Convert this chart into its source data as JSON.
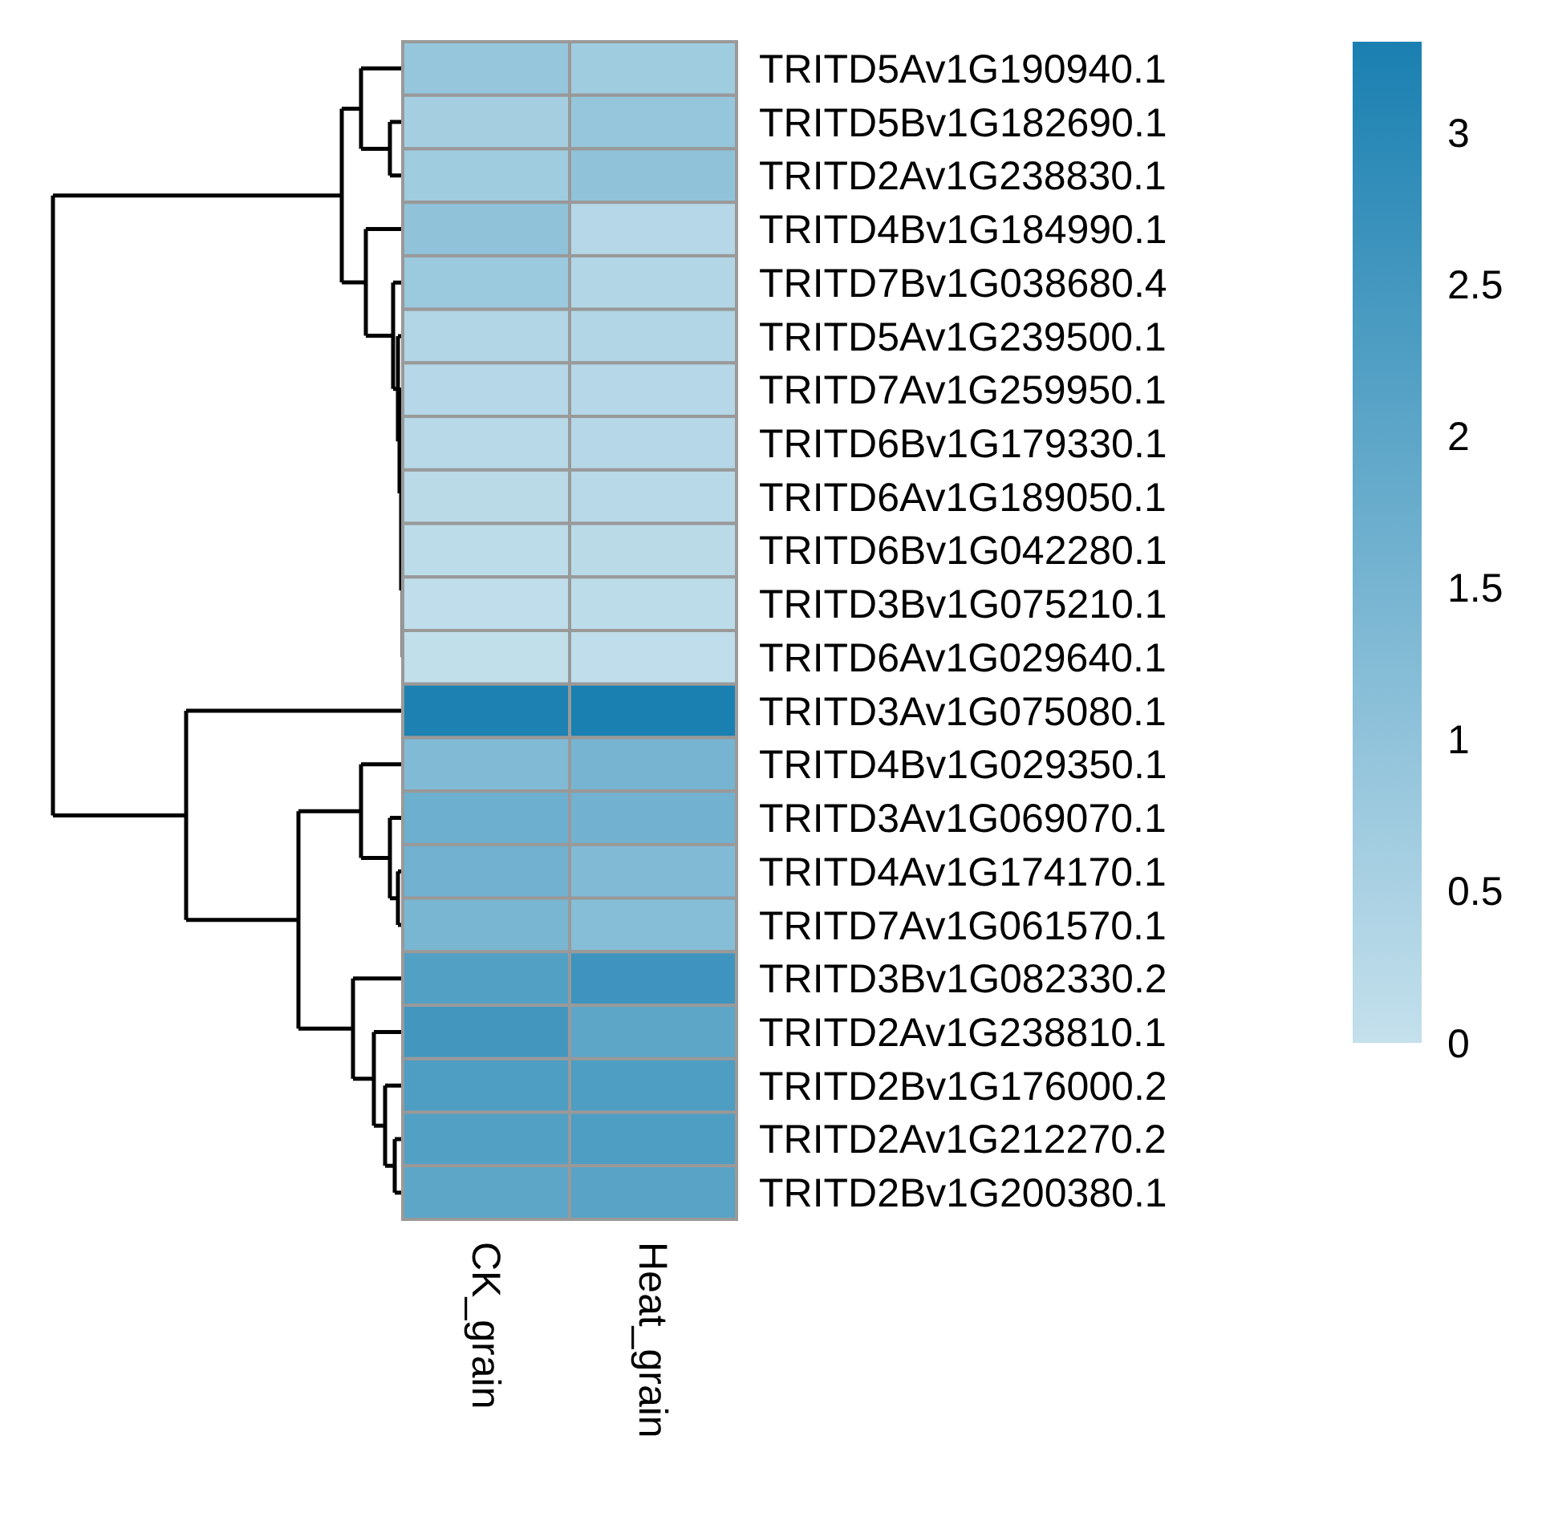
{
  "chart_data": {
    "type": "heatmap",
    "categories": [
      "CK_grain",
      "Heat_grain"
    ],
    "y_categories": [
      "TRITD5Av1G190940.1",
      "TRITD5Bv1G182690.1",
      "TRITD2Av1G238830.1",
      "TRITD4Bv1G184990.1",
      "TRITD7Bv1G038680.4",
      "TRITD5Av1G239500.1",
      "TRITD7Av1G259950.1",
      "TRITD6Bv1G179330.1",
      "TRITD6Av1G189050.1",
      "TRITD6Bv1G042280.1",
      "TRITD3Bv1G075210.1",
      "TRITD6Av1G029640.1",
      "TRITD3Av1G075080.1",
      "TRITD4Bv1G029350.1",
      "TRITD3Av1G069070.1",
      "TRITD4Av1G174170.1",
      "TRITD7Av1G061570.1",
      "TRITD3Bv1G082330.2",
      "TRITD2Av1G238810.1",
      "TRITD2Bv1G176000.2",
      "TRITD2Av1G212270.2",
      "TRITD2Bv1G200380.1"
    ],
    "cells": [
      [
        0.9,
        0.7
      ],
      [
        0.6,
        0.9
      ],
      [
        0.7,
        1.0
      ],
      [
        1.0,
        0.3
      ],
      [
        0.8,
        0.35
      ],
      [
        0.35,
        0.35
      ],
      [
        0.3,
        0.3
      ],
      [
        0.25,
        0.3
      ],
      [
        0.2,
        0.25
      ],
      [
        0.15,
        0.2
      ],
      [
        0.1,
        0.15
      ],
      [
        0.05,
        0.1
      ],
      [
        3.25,
        3.3
      ],
      [
        1.3,
        1.5
      ],
      [
        1.7,
        1.6
      ],
      [
        1.6,
        1.3
      ],
      [
        1.45,
        1.2
      ],
      [
        2.2,
        2.6
      ],
      [
        2.5,
        2.0
      ],
      [
        2.3,
        2.3
      ],
      [
        2.2,
        2.3
      ],
      [
        2.0,
        2.1
      ]
    ],
    "colors": [
      "#c4e0ec",
      "#1a80b1"
    ],
    "clim": [
      0,
      3.3
    ],
    "cticks": [
      0,
      0.5,
      1,
      1.5,
      2,
      2.5,
      3
    ]
  }
}
